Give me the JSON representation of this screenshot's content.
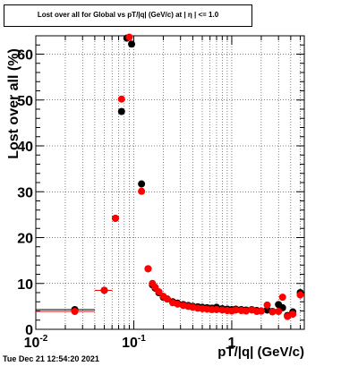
{
  "chart_data": {
    "type": "scatter",
    "title": "Lost over all for Global vs pT/|q| (GeV/c) at | η | <= 1.0",
    "xlabel": "pT/|q| (GeV/c)",
    "ylabel": "Lost over all (%)",
    "x_scale": "log",
    "xlim": [
      0.01,
      5.5
    ],
    "ylim": [
      0,
      64
    ],
    "x_ticks": [
      {
        "value": 0.01,
        "label": "10",
        "sup": "-2"
      },
      {
        "value": 0.1,
        "label": "10",
        "sup": "-1"
      },
      {
        "value": 1,
        "label": "1",
        "sup": ""
      }
    ],
    "y_ticks": [
      0,
      10,
      20,
      30,
      40,
      50,
      60
    ],
    "grid": true,
    "legend": "none",
    "series": [
      {
        "color": "#000000",
        "points": [
          {
            "x": 0.025,
            "y": 4.3,
            "xerr": [
              0.01,
              0.04
            ]
          },
          {
            "x": 0.05,
            "y": 8.5,
            "xerr": [
              0.04,
              0.06
            ]
          },
          {
            "x": 0.065,
            "y": 24.2
          },
          {
            "x": 0.075,
            "y": 47.5
          },
          {
            "x": 0.085,
            "y": 63.5
          },
          {
            "x": 0.095,
            "y": 62.2
          },
          {
            "x": 0.12,
            "y": 31.7
          },
          {
            "x": 0.14,
            "y": 13.2
          },
          {
            "x": 0.155,
            "y": 9.7
          },
          {
            "x": 0.165,
            "y": 9.0
          },
          {
            "x": 0.18,
            "y": 8.0
          },
          {
            "x": 0.2,
            "y": 7.0
          },
          {
            "x": 0.22,
            "y": 6.6
          },
          {
            "x": 0.25,
            "y": 6.0
          },
          {
            "x": 0.28,
            "y": 5.7
          },
          {
            "x": 0.32,
            "y": 5.4
          },
          {
            "x": 0.36,
            "y": 5.2
          },
          {
            "x": 0.4,
            "y": 5.0
          },
          {
            "x": 0.45,
            "y": 4.9
          },
          {
            "x": 0.5,
            "y": 4.8
          },
          {
            "x": 0.56,
            "y": 4.7
          },
          {
            "x": 0.63,
            "y": 4.6
          },
          {
            "x": 0.7,
            "y": 4.8
          },
          {
            "x": 0.8,
            "y": 4.5
          },
          {
            "x": 0.9,
            "y": 4.4
          },
          {
            "x": 1.0,
            "y": 4.3
          },
          {
            "x": 1.1,
            "y": 4.4
          },
          {
            "x": 1.25,
            "y": 4.3
          },
          {
            "x": 1.4,
            "y": 4.2
          },
          {
            "x": 1.6,
            "y": 4.3
          },
          {
            "x": 1.8,
            "y": 4.1
          },
          {
            "x": 2.0,
            "y": 4.0
          },
          {
            "x": 2.3,
            "y": 4.2
          },
          {
            "x": 2.6,
            "y": 3.9
          },
          {
            "x": 3.0,
            "y": 5.4
          },
          {
            "x": 3.3,
            "y": 4.7
          },
          {
            "x": 3.7,
            "y": 3.0
          },
          {
            "x": 4.2,
            "y": 3.8
          },
          {
            "x": 5.0,
            "y": 8.0
          }
        ]
      },
      {
        "color": "#ff0000",
        "points": [
          {
            "x": 0.025,
            "y": 3.9,
            "xerr": [
              0.01,
              0.04
            ]
          },
          {
            "x": 0.05,
            "y": 8.5,
            "xerr": [
              0.04,
              0.06
            ]
          },
          {
            "x": 0.065,
            "y": 24.2
          },
          {
            "x": 0.075,
            "y": 50.2
          },
          {
            "x": 0.09,
            "y": 63.7
          },
          {
            "x": 0.12,
            "y": 30.1
          },
          {
            "x": 0.14,
            "y": 13.2
          },
          {
            "x": 0.155,
            "y": 10.0
          },
          {
            "x": 0.165,
            "y": 9.2
          },
          {
            "x": 0.18,
            "y": 8.2
          },
          {
            "x": 0.2,
            "y": 7.2
          },
          {
            "x": 0.22,
            "y": 6.6
          },
          {
            "x": 0.25,
            "y": 5.8
          },
          {
            "x": 0.28,
            "y": 5.5
          },
          {
            "x": 0.32,
            "y": 5.2
          },
          {
            "x": 0.36,
            "y": 5.0
          },
          {
            "x": 0.4,
            "y": 4.8
          },
          {
            "x": 0.45,
            "y": 4.6
          },
          {
            "x": 0.5,
            "y": 4.5
          },
          {
            "x": 0.56,
            "y": 4.4
          },
          {
            "x": 0.63,
            "y": 4.3
          },
          {
            "x": 0.7,
            "y": 4.3
          },
          {
            "x": 0.8,
            "y": 4.2
          },
          {
            "x": 0.9,
            "y": 4.1
          },
          {
            "x": 1.0,
            "y": 4.0
          },
          {
            "x": 1.1,
            "y": 4.2
          },
          {
            "x": 1.25,
            "y": 4.1
          },
          {
            "x": 1.4,
            "y": 4.0
          },
          {
            "x": 1.6,
            "y": 4.2
          },
          {
            "x": 1.8,
            "y": 3.9
          },
          {
            "x": 2.0,
            "y": 4.0
          },
          {
            "x": 2.3,
            "y": 5.3
          },
          {
            "x": 2.6,
            "y": 3.8
          },
          {
            "x": 3.0,
            "y": 3.9
          },
          {
            "x": 3.3,
            "y": 7.0
          },
          {
            "x": 3.7,
            "y": 2.8
          },
          {
            "x": 4.2,
            "y": 3.3
          },
          {
            "x": 5.0,
            "y": 7.5
          }
        ]
      }
    ]
  },
  "timestamp": "Tue Dec 21 12:54:20 2021"
}
